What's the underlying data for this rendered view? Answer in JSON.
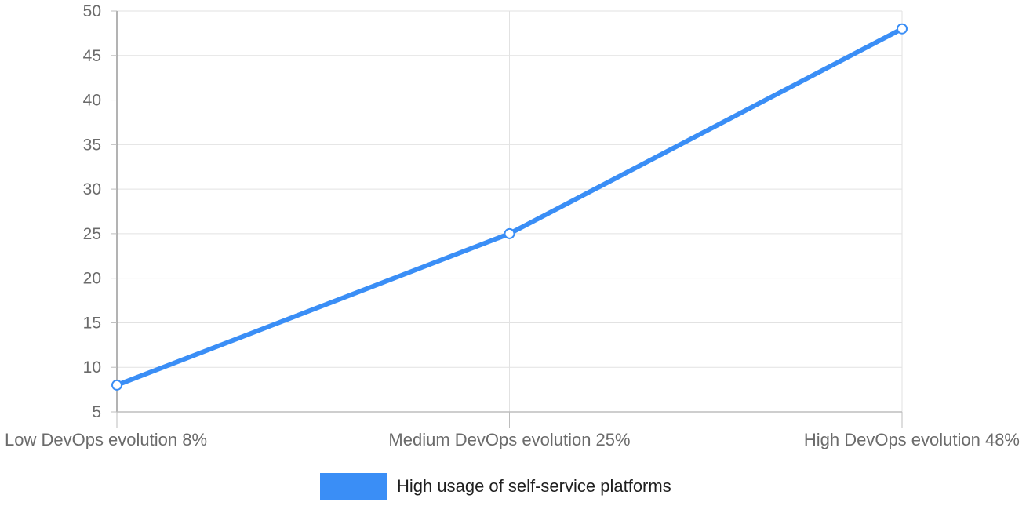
{
  "chart_data": {
    "type": "line",
    "categories": [
      "Low DevOps evolution 8%",
      "Medium DevOps evolution 25%",
      "High DevOps evolution 48%"
    ],
    "series": [
      {
        "name": "High usage of self-service platforms",
        "values": [
          8,
          25,
          48
        ],
        "color": "#3a8ef6"
      }
    ],
    "title": "",
    "xlabel": "",
    "ylabel": "",
    "ylim": [
      5,
      50
    ],
    "yticks": [
      5,
      10,
      15,
      20,
      25,
      30,
      35,
      40,
      45,
      50
    ],
    "grid": true,
    "legend_position": "bottom-center"
  }
}
